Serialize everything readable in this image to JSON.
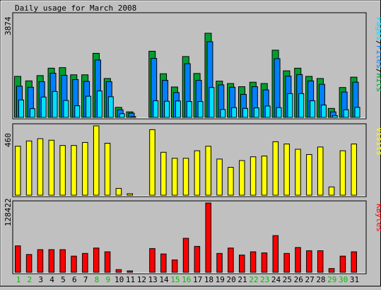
{
  "title": "Daily usage for March 2008",
  "colors": {
    "hits": "#00a030",
    "files": "#0080ff",
    "pages": "#00e0ff",
    "visits": "#ffff00",
    "kbytes": "#ff0000",
    "weekend_label": "#00c000",
    "weekday_label": "#000000",
    "background": "#c0c0c0"
  },
  "chart_data": [
    {
      "type": "bar",
      "title": "Daily usage for March 2008",
      "legend": [
        "Pages",
        "Files",
        "Hits"
      ],
      "ymax_label": "3874",
      "ylim": [
        0,
        3874
      ],
      "categories": [
        "1",
        "2",
        "3",
        "4",
        "5",
        "6",
        "7",
        "8",
        "9",
        "10",
        "11",
        "12",
        "13",
        "14",
        "15",
        "16",
        "17",
        "18",
        "19",
        "20",
        "21",
        "22",
        "23",
        "24",
        "25",
        "26",
        "27",
        "28",
        "29",
        "30",
        "31"
      ],
      "series": [
        {
          "name": "Hits",
          "values": [
            1550,
            1380,
            1580,
            1860,
            1880,
            1610,
            1610,
            2420,
            1470,
            380,
            210,
            0,
            2500,
            1650,
            1150,
            2300,
            1660,
            3180,
            1370,
            1280,
            1160,
            1330,
            1280,
            2540,
            1760,
            1860,
            1550,
            1470,
            340,
            1130,
            1520
          ]
        },
        {
          "name": "Files",
          "values": [
            1180,
            1140,
            1350,
            1670,
            1590,
            1430,
            1360,
            2170,
            1350,
            290,
            160,
            0,
            2230,
            1400,
            940,
            2030,
            1400,
            2860,
            1230,
            1140,
            870,
            1160,
            1040,
            2220,
            1560,
            1620,
            1380,
            1250,
            210,
            960,
            1330
          ]
        },
        {
          "name": "Pages",
          "values": [
            660,
            330,
            770,
            980,
            640,
            440,
            800,
            1000,
            780,
            140,
            30,
            0,
            630,
            610,
            620,
            600,
            600,
            1130,
            300,
            370,
            340,
            360,
            430,
            370,
            900,
            900,
            630,
            470,
            70,
            290,
            380
          ]
        }
      ]
    },
    {
      "type": "bar",
      "legend": [
        "Visits"
      ],
      "ymax_label": "460",
      "ylim": [
        0,
        460
      ],
      "categories": [
        "1",
        "2",
        "3",
        "4",
        "5",
        "6",
        "7",
        "8",
        "9",
        "10",
        "11",
        "12",
        "13",
        "14",
        "15",
        "16",
        "17",
        "18",
        "19",
        "20",
        "21",
        "22",
        "23",
        "24",
        "25",
        "26",
        "27",
        "28",
        "29",
        "30",
        "31"
      ],
      "series": [
        {
          "name": "Visits",
          "values": [
            325,
            360,
            375,
            365,
            330,
            330,
            350,
            460,
            345,
            45,
            10,
            0,
            435,
            285,
            245,
            245,
            295,
            325,
            240,
            185,
            230,
            255,
            260,
            355,
            340,
            305,
            270,
            320,
            55,
            295,
            340
          ]
        }
      ]
    },
    {
      "type": "bar",
      "legend": [
        "KBytes"
      ],
      "ymax_label": "128422",
      "ylim": [
        0,
        128422
      ],
      "categories": [
        "1",
        "2",
        "3",
        "4",
        "5",
        "6",
        "7",
        "8",
        "9",
        "10",
        "11",
        "12",
        "13",
        "14",
        "15",
        "16",
        "17",
        "18",
        "19",
        "20",
        "21",
        "22",
        "23",
        "24",
        "25",
        "26",
        "27",
        "28",
        "29",
        "30",
        "31"
      ],
      "series": [
        {
          "name": "KBytes",
          "values": [
            49000,
            33000,
            42000,
            42000,
            42000,
            30000,
            35000,
            45000,
            38000,
            5000,
            2000,
            0,
            44000,
            34000,
            23000,
            63000,
            48000,
            128422,
            35000,
            45000,
            32000,
            38000,
            36000,
            68000,
            35000,
            46000,
            40000,
            40000,
            7000,
            30000,
            38000
          ]
        }
      ]
    }
  ],
  "x_axis": {
    "labels": [
      "1",
      "2",
      "3",
      "4",
      "5",
      "6",
      "7",
      "8",
      "9",
      "10",
      "11",
      "12",
      "13",
      "14",
      "15",
      "16",
      "17",
      "18",
      "19",
      "20",
      "21",
      "22",
      "23",
      "24",
      "25",
      "26",
      "27",
      "28",
      "29",
      "30",
      "31"
    ],
    "weekend": [
      1,
      2,
      8,
      9,
      15,
      16,
      22,
      23,
      29,
      30
    ]
  }
}
